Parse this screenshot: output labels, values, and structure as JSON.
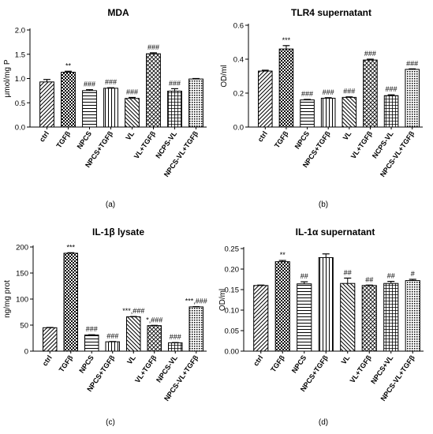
{
  "chart_data": [
    {
      "type": "bar",
      "panel_label": "(a)",
      "title": "MDA",
      "ylabel": "μmol/mg P",
      "xlabel": "",
      "ylim": [
        0,
        2.0
      ],
      "yticks": [
        "0.0",
        "0.5",
        "1.0",
        "1.5",
        "2.0"
      ],
      "grid": false,
      "categories": [
        "ctrl",
        "TGFβ",
        "NPCS",
        "NPCS+TGFβ",
        "VL",
        "VL+TGFβ",
        "NCPS-VL",
        "NPCS-VL+TGFβ"
      ],
      "values": [
        0.93,
        1.13,
        0.75,
        0.8,
        0.59,
        1.51,
        0.74,
        0.99
      ],
      "errors": [
        0.05,
        0.02,
        0.02,
        0.01,
        0.02,
        0.02,
        0.05,
        0.01
      ],
      "annotations": [
        "",
        "**",
        "###",
        "###",
        "###",
        "###",
        "###",
        ""
      ]
    },
    {
      "type": "bar",
      "panel_label": "(b)",
      "title": "TLR4 supernatant",
      "ylabel": "OD/ml",
      "xlabel": "",
      "ylim": [
        0,
        0.6
      ],
      "yticks": [
        "0.0",
        "0.2",
        "0.4",
        "0.6"
      ],
      "grid": false,
      "categories": [
        "ctrl",
        "TGFβ",
        "NPCS",
        "NPCS+TGFβ",
        "VL",
        "VL+TGFβ",
        "NCPS-VL",
        "NPCS-VL+TGFβ"
      ],
      "values": [
        0.33,
        0.46,
        0.16,
        0.17,
        0.175,
        0.395,
        0.185,
        0.34
      ],
      "errors": [
        0.005,
        0.02,
        0.003,
        0.003,
        0.003,
        0.005,
        0.005,
        0.003
      ],
      "annotations": [
        "",
        "***",
        "###",
        "###",
        "###",
        "###",
        "###",
        "###"
      ]
    },
    {
      "type": "bar",
      "panel_label": "(c)",
      "title": "IL-1β lysate",
      "ylabel": "ng/mg prot",
      "xlabel": "",
      "ylim": [
        0,
        200
      ],
      "yticks": [
        "0",
        "50",
        "100",
        "150",
        "200"
      ],
      "grid": false,
      "categories": [
        "ctrl",
        "TGFβ",
        "NPCS",
        "NPCS+TGFβ",
        "VL",
        "VL+TGFβ",
        "NPCS-VL",
        "NPCS-VL+TGFβ"
      ],
      "values": [
        45,
        188,
        31,
        18,
        66,
        49,
        16,
        85
      ],
      "errors": [
        0.5,
        1.0,
        0.5,
        0.5,
        0.5,
        0.5,
        0.5,
        0.5
      ],
      "annotations": [
        "",
        "***",
        "###",
        "###",
        "***,###",
        "*,###",
        "###",
        "***,###"
      ]
    },
    {
      "type": "bar",
      "panel_label": "(d)",
      "title": "IL-1α supernatant",
      "ylabel": "OD/ml",
      "xlabel": "",
      "ylim": [
        0,
        0.25
      ],
      "yticks": [
        "0.00",
        "0.05",
        "0.10",
        "0.15",
        "0.20",
        "0.25"
      ],
      "grid": false,
      "categories": [
        "ctrl",
        "TGFβ",
        "NPCS",
        "NPCS+TGFβ",
        "VL",
        "VL+TGFβ",
        "NPCS+VL",
        "NPCS-VL+TGFβ"
      ],
      "values": [
        0.16,
        0.218,
        0.164,
        0.228,
        0.165,
        0.16,
        0.165,
        0.172
      ],
      "errors": [
        0.001,
        0.003,
        0.005,
        0.009,
        0.013,
        0.001,
        0.005,
        0.003
      ],
      "annotations": [
        "",
        "**",
        "##",
        "",
        "##",
        "##",
        "##",
        "#"
      ]
    }
  ]
}
